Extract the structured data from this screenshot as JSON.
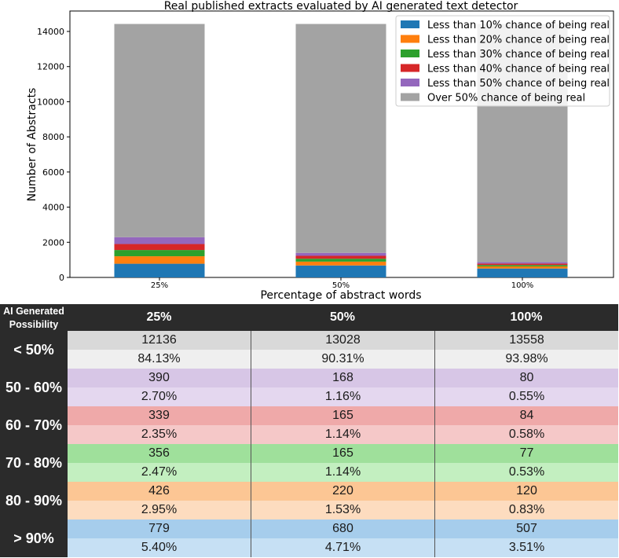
{
  "chart_data": {
    "type": "bar",
    "stacked": true,
    "title": "Real published extracts evaluated by AI generated text detector",
    "xlabel": "Percentage of abstract words",
    "ylabel": "Number of Abstracts",
    "categories": [
      "25%",
      "50%",
      "100%"
    ],
    "ylim": [
      0,
      15000
    ],
    "yticks": [
      0,
      2000,
      4000,
      6000,
      8000,
      10000,
      12000,
      14000
    ],
    "legend_position": "top-right",
    "series": [
      {
        "name": "Less than 10% chance of being real",
        "color": "#1f77b4",
        "values": [
          779,
          680,
          507
        ]
      },
      {
        "name": "Less than 20% chance of being real",
        "color": "#ff7f0e",
        "values": [
          426,
          220,
          120
        ]
      },
      {
        "name": "Less than 30% chance of being real",
        "color": "#2ca02c",
        "values": [
          356,
          165,
          77
        ]
      },
      {
        "name": "Less than 40% chance of being real",
        "color": "#d62728",
        "values": [
          339,
          165,
          84
        ]
      },
      {
        "name": "Less than 50% chance of being real",
        "color": "#9467bd",
        "values": [
          390,
          168,
          80
        ]
      },
      {
        "name": "Over 50% chance of being real",
        "color": "#a3a3a3",
        "values": [
          12136,
          13028,
          13558
        ]
      }
    ]
  },
  "table": {
    "header_first_line1": "AI Generated",
    "header_first_line2": "Possibility",
    "columns": [
      "25%",
      "50%",
      "100%"
    ],
    "groups": [
      {
        "label": "< 50%",
        "counts": [
          "12136",
          "13028",
          "13558"
        ],
        "percents": [
          "84.13%",
          "90.31%",
          "93.98%"
        ],
        "count_bg": "#d9d9d9",
        "pct_bg": "#efefef"
      },
      {
        "label": "50 - 60%",
        "counts": [
          "390",
          "168",
          "80"
        ],
        "percents": [
          "2.70%",
          "1.16%",
          "0.55%"
        ],
        "count_bg": "#d7c6e6",
        "pct_bg": "#e4d7ef"
      },
      {
        "label": "60 - 70%",
        "counts": [
          "339",
          "165",
          "84"
        ],
        "percents": [
          "2.35%",
          "1.14%",
          "0.58%"
        ],
        "count_bg": "#efa9a9",
        "pct_bg": "#f5c8c8"
      },
      {
        "label": "70 - 80%",
        "counts": [
          "356",
          "165",
          "77"
        ],
        "percents": [
          "2.47%",
          "1.14%",
          "0.53%"
        ],
        "count_bg": "#9fe09b",
        "pct_bg": "#c3efc0"
      },
      {
        "label": "80 - 90%",
        "counts": [
          "426",
          "220",
          "120"
        ],
        "percents": [
          "2.95%",
          "1.53%",
          "0.83%"
        ],
        "count_bg": "#fcc694",
        "pct_bg": "#fddcbf"
      },
      {
        "label": "> 90%",
        "counts": [
          "779",
          "680",
          "507"
        ],
        "percents": [
          "5.40%",
          "4.71%",
          "3.51%"
        ],
        "count_bg": "#a6cdec",
        "pct_bg": "#c6e0f4"
      }
    ]
  }
}
